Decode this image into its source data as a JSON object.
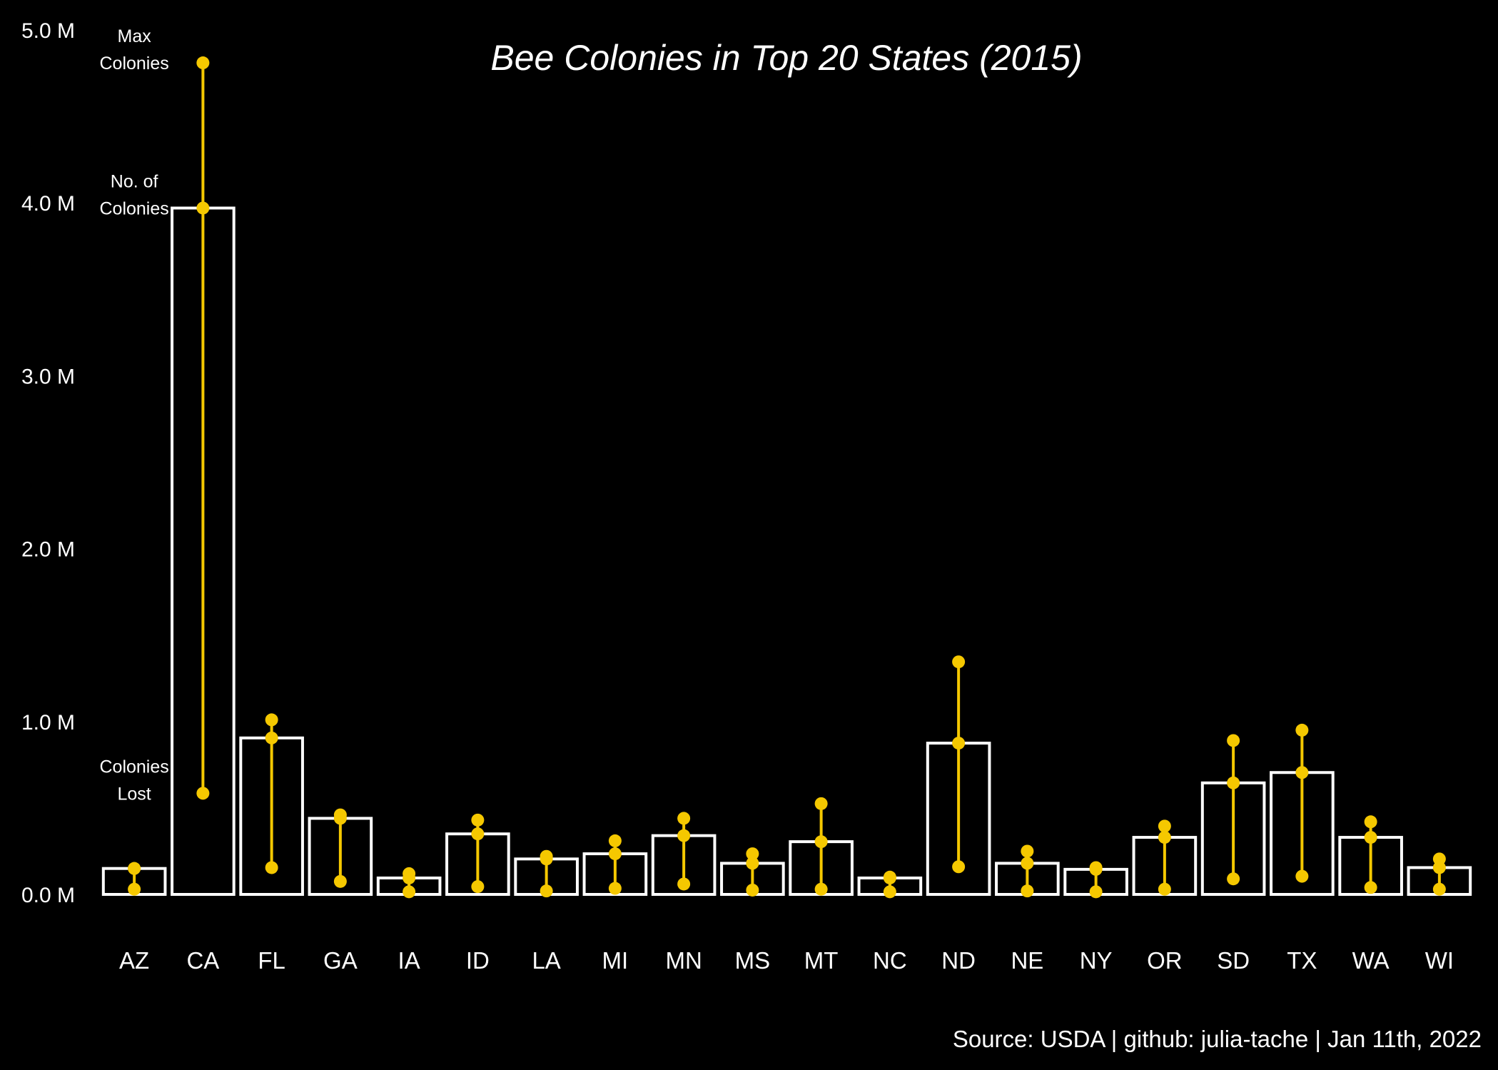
{
  "chart_data": {
    "type": "bar",
    "title": "Bee Colonies in Top 20 States (2015)",
    "caption": "Source: USDA | github: julia-tache | Jan 11th, 2022",
    "xlabel": "",
    "ylabel": "",
    "ylim": [
      0,
      5000000
    ],
    "y_ticks": [
      {
        "value": 0,
        "label": "0.0 M"
      },
      {
        "value": 1000000,
        "label": "1.0 M"
      },
      {
        "value": 2000000,
        "label": "2.0 M"
      },
      {
        "value": 3000000,
        "label": "3.0 M"
      },
      {
        "value": 4000000,
        "label": "4.0 M"
      },
      {
        "value": 5000000,
        "label": "5.0 M"
      }
    ],
    "grid": false,
    "categories": [
      "AZ",
      "CA",
      "FL",
      "GA",
      "IA",
      "ID",
      "LA",
      "MI",
      "MN",
      "MS",
      "MT",
      "NC",
      "ND",
      "NE",
      "NY",
      "OR",
      "SD",
      "TX",
      "WA",
      "WI"
    ],
    "series": [
      {
        "name": "No. of Colonies",
        "mark": "bar",
        "values": [
          150000,
          3970000,
          905000,
          440000,
          95000,
          350000,
          205000,
          235000,
          340000,
          180000,
          305000,
          95000,
          875000,
          180000,
          145000,
          330000,
          645000,
          705000,
          330000,
          155000
        ]
      },
      {
        "name": "Max Colonies",
        "mark": "point",
        "values": [
          150000,
          4810000,
          1010000,
          460000,
          120000,
          430000,
          220000,
          310000,
          440000,
          235000,
          525000,
          100000,
          1345000,
          250000,
          155000,
          395000,
          890000,
          950000,
          420000,
          205000
        ]
      },
      {
        "name": "Colonies Lost",
        "mark": "point",
        "values": [
          30000,
          585000,
          155000,
          75000,
          15000,
          45000,
          20000,
          35000,
          60000,
          25000,
          30000,
          15000,
          160000,
          20000,
          15000,
          30000,
          90000,
          105000,
          40000,
          30000
        ]
      }
    ],
    "annotations": [
      {
        "lines": [
          "Max",
          "Colonies"
        ],
        "y": 4810000
      },
      {
        "lines": [
          "No. of",
          "Colonies"
        ],
        "y": 3970000
      },
      {
        "lines": [
          "Colonies",
          "Lost"
        ],
        "y": 585000
      }
    ],
    "colors": {
      "background": "#000000",
      "bar_stroke": "#ffffff",
      "accent": "#f5c800",
      "text": "#ffffff"
    }
  }
}
